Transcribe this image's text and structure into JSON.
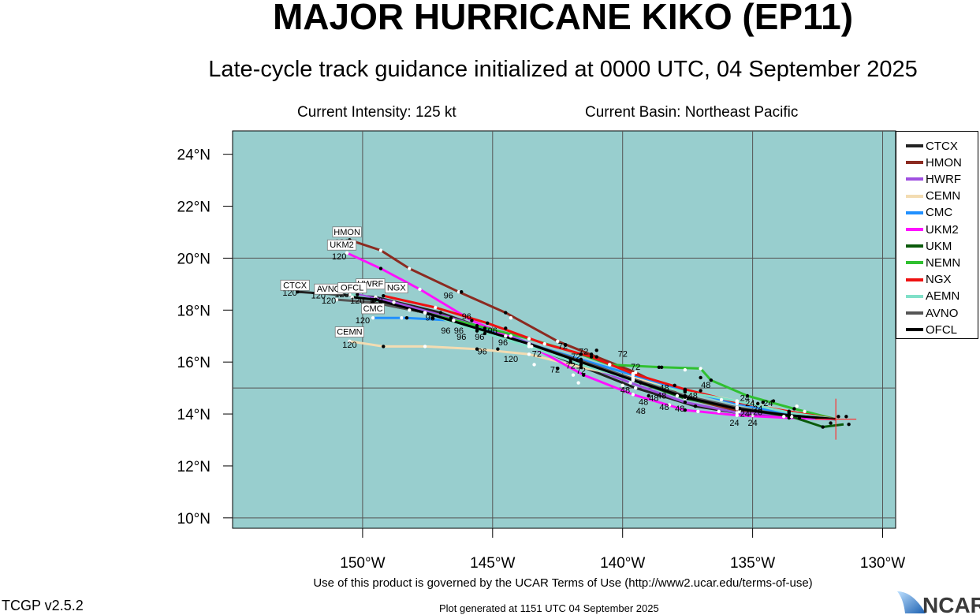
{
  "header": {
    "title": "MAJOR HURRICANE KIKO (EP11)",
    "subtitle": "Late-cycle track guidance initialized at 0000 UTC, 04 September 2025",
    "intensity": "Current Intensity: 125 kt",
    "basin": "Current Basin: Northeast Pacific"
  },
  "map": {
    "lon_range": [
      -155,
      -129.5
    ],
    "lat_range": [
      9.6,
      24.9
    ],
    "lat_ticks": [
      {
        "v": 10,
        "label": "10°N"
      },
      {
        "v": 12,
        "label": "12°N"
      },
      {
        "v": 14,
        "label": "14°N"
      },
      {
        "v": 16,
        "label": "16°N"
      },
      {
        "v": 18,
        "label": "18°N"
      },
      {
        "v": 20,
        "label": "20°N"
      },
      {
        "v": 22,
        "label": "22°N"
      },
      {
        "v": 24,
        "label": "24°N"
      }
    ],
    "lon_ticks": [
      {
        "v": -150,
        "label": "150°W"
      },
      {
        "v": -145,
        "label": "145°W"
      },
      {
        "v": -140,
        "label": "140°W"
      },
      {
        "v": -135,
        "label": "135°W"
      },
      {
        "v": -130,
        "label": "130°W"
      }
    ],
    "grid_lat": [
      10,
      15,
      20
    ],
    "grid_lon": [
      -150,
      -145,
      -140,
      -135,
      -130
    ],
    "ocean_color": "#98cece",
    "grid": true,
    "current_position": {
      "lon": -131.8,
      "lat": 13.8
    }
  },
  "legend": {
    "placement": "right",
    "entries": [
      {
        "name": "CTCX",
        "color": "#222222"
      },
      {
        "name": "HMON",
        "color": "#8b2a20"
      },
      {
        "name": "HWRF",
        "color": "#a050e0"
      },
      {
        "name": "CEMN",
        "color": "#f3dcb2"
      },
      {
        "name": "CMC",
        "color": "#2090ff"
      },
      {
        "name": "UKM2",
        "color": "#ff10ff"
      },
      {
        "name": "UKM",
        "color": "#0a5a0a"
      },
      {
        "name": "NEMN",
        "color": "#30c030"
      },
      {
        "name": "NGX",
        "color": "#ee1111"
      },
      {
        "name": "AEMN",
        "color": "#80e0c8"
      },
      {
        "name": "AVNO",
        "color": "#555555"
      },
      {
        "name": "OFCL",
        "color": "#000000"
      }
    ]
  },
  "tracks": [
    {
      "name": "CTCX",
      "color": "#222222",
      "points": [
        [
          -131.8,
          13.8
        ],
        [
          -133.2,
          13.85
        ],
        [
          -135.0,
          13.95
        ],
        [
          -137.2,
          14.3
        ],
        [
          -139.5,
          15.0
        ],
        [
          -142.0,
          16.0
        ],
        [
          -144.5,
          17.0
        ],
        [
          -147.0,
          17.9
        ],
        [
          -149.5,
          18.5
        ],
        [
          -152.5,
          18.7
        ]
      ],
      "label": {
        "lon": -152.6,
        "lat": 18.85,
        "text": "CTCX"
      },
      "end_hour": "120"
    },
    {
      "name": "HMON",
      "color": "#8b2a20",
      "points": [
        [
          -131.8,
          13.8
        ],
        [
          -133.5,
          13.9
        ],
        [
          -135.5,
          14.1
        ],
        [
          -137.5,
          14.6
        ],
        [
          -139.5,
          15.6
        ],
        [
          -141.0,
          16.2
        ],
        [
          -142.5,
          16.8
        ],
        [
          -144.5,
          17.9
        ],
        [
          -146.3,
          18.7
        ],
        [
          -148.2,
          19.6
        ],
        [
          -149.3,
          20.3
        ],
        [
          -150.5,
          20.7
        ]
      ],
      "label": {
        "lon": -150.6,
        "lat": 20.9,
        "text": "HMON"
      },
      "end_hour": "120"
    },
    {
      "name": "HWRF",
      "color": "#a050e0",
      "points": [
        [
          -131.8,
          13.8
        ],
        [
          -133.6,
          13.95
        ],
        [
          -135.6,
          14.05
        ],
        [
          -137.6,
          14.45
        ],
        [
          -139.7,
          15.2
        ],
        [
          -142.0,
          16.1
        ],
        [
          -144.3,
          17.0
        ],
        [
          -146.6,
          17.7
        ],
        [
          -148.8,
          18.3
        ],
        [
          -150.2,
          18.6
        ]
      ],
      "label": {
        "lon": -149.7,
        "lat": 18.9,
        "text": "HWRF"
      },
      "end_hour": "120"
    },
    {
      "name": "CEMN",
      "color": "#f3dcb2",
      "points": [
        [
          -131.8,
          13.8
        ],
        [
          -133.6,
          14.1
        ],
        [
          -135.6,
          14.5
        ],
        [
          -137.6,
          14.9
        ],
        [
          -139.6,
          15.4
        ],
        [
          -141.6,
          15.8
        ],
        [
          -143.6,
          16.3
        ],
        [
          -145.6,
          16.5
        ],
        [
          -147.6,
          16.6
        ],
        [
          -149.2,
          16.6
        ],
        [
          -150.5,
          16.8
        ]
      ],
      "label": {
        "lon": -150.5,
        "lat": 17.05,
        "text": "CEMN"
      },
      "end_hour": "120"
    },
    {
      "name": "CMC",
      "color": "#2090ff",
      "points": [
        [
          -131.8,
          13.8
        ],
        [
          -133.6,
          14.0
        ],
        [
          -135.6,
          14.4
        ],
        [
          -137.6,
          14.9
        ],
        [
          -139.6,
          15.5
        ],
        [
          -141.6,
          16.1
        ],
        [
          -143.6,
          16.7
        ],
        [
          -145.3,
          17.3
        ],
        [
          -146.5,
          17.6
        ],
        [
          -148.3,
          17.7
        ],
        [
          -149.6,
          17.7
        ]
      ],
      "label": {
        "lon": -149.6,
        "lat": 17.95,
        "text": "CMC"
      },
      "end_hour": "120"
    },
    {
      "name": "UKM2",
      "color": "#ff10ff",
      "points": [
        [
          -131.8,
          13.8
        ],
        [
          -133.6,
          13.85
        ],
        [
          -135.6,
          13.95
        ],
        [
          -137.6,
          14.15
        ],
        [
          -139.6,
          14.75
        ],
        [
          -141.5,
          15.5
        ],
        [
          -143.5,
          16.6
        ],
        [
          -145.8,
          17.6
        ],
        [
          -147.8,
          18.8
        ],
        [
          -149.3,
          19.6
        ],
        [
          -150.6,
          20.2
        ]
      ],
      "label": {
        "lon": -150.8,
        "lat": 20.4,
        "text": "UKM2"
      },
      "end_hour": "120"
    },
    {
      "name": "UKM",
      "color": "#0a5a0a",
      "points": [
        [
          -131.5,
          13.6
        ],
        [
          -132.3,
          13.5
        ],
        [
          -133.5,
          13.9
        ],
        [
          -135.5,
          14.2
        ],
        [
          -137.6,
          14.6
        ],
        [
          -139.6,
          15.3
        ],
        [
          -141.6,
          16.0
        ],
        [
          -143.6,
          16.7
        ],
        [
          -145.6,
          17.3
        ],
        [
          -147.6,
          17.9
        ],
        [
          -149.6,
          18.3
        ]
      ],
      "label": null,
      "end_hour": "120"
    },
    {
      "name": "NEMN",
      "color": "#30c030",
      "points": [
        [
          -131.8,
          13.8
        ],
        [
          -133.4,
          14.2
        ],
        [
          -135.2,
          14.7
        ],
        [
          -136.6,
          15.3
        ],
        [
          -137.0,
          15.75
        ],
        [
          -138.5,
          15.8
        ],
        [
          -140.5,
          15.9
        ],
        [
          -141.6,
          16.3
        ],
        [
          -143.6,
          16.9
        ],
        [
          -145.6,
          17.4
        ],
        [
          -147.6,
          17.9
        ],
        [
          -149.3,
          18.3
        ]
      ],
      "label": null,
      "end_hour": "120"
    },
    {
      "name": "NGX",
      "color": "#ee1111",
      "points": [
        [
          -131.8,
          13.8
        ],
        [
          -133.6,
          14.1
        ],
        [
          -135.6,
          14.45
        ],
        [
          -137.6,
          14.95
        ],
        [
          -139.6,
          15.55
        ],
        [
          -141.2,
          16.2
        ],
        [
          -143.0,
          16.7
        ],
        [
          -145.2,
          17.5
        ],
        [
          -147.2,
          18.1
        ],
        [
          -149.2,
          18.55
        ]
      ],
      "label": {
        "lon": -148.7,
        "lat": 18.75,
        "text": "NGX"
      },
      "end_hour": "120"
    },
    {
      "name": "AEMN",
      "color": "#80e0c8",
      "points": [
        [
          -131.8,
          13.8
        ],
        [
          -133.6,
          14.05
        ],
        [
          -135.6,
          14.5
        ],
        [
          -137.6,
          14.85
        ],
        [
          -139.6,
          15.3
        ],
        [
          -141.6,
          15.9
        ],
        [
          -143.6,
          16.6
        ],
        [
          -145.6,
          17.2
        ],
        [
          -147.6,
          17.9
        ],
        [
          -149.6,
          18.4
        ],
        [
          -150.5,
          18.6
        ]
      ],
      "label": null,
      "end_hour": "120"
    },
    {
      "name": "AVNO",
      "color": "#555555",
      "points": [
        [
          -131.8,
          13.8
        ],
        [
          -133.6,
          13.95
        ],
        [
          -135.6,
          14.25
        ],
        [
          -137.6,
          14.7
        ],
        [
          -139.6,
          15.35
        ],
        [
          -141.6,
          16.05
        ],
        [
          -143.6,
          16.7
        ],
        [
          -145.6,
          17.3
        ],
        [
          -147.6,
          17.9
        ],
        [
          -149.6,
          18.3
        ],
        [
          -151.0,
          18.4
        ]
      ],
      "label": {
        "lon": -151.3,
        "lat": 18.7,
        "text": "AVNO"
      },
      "end_hour": "120"
    },
    {
      "name": "OFCL",
      "color": "#000000",
      "points": [
        [
          -131.8,
          13.8
        ],
        [
          -133.6,
          13.95
        ],
        [
          -135.6,
          14.2
        ],
        [
          -137.6,
          14.65
        ],
        [
          -139.6,
          15.3
        ],
        [
          -141.6,
          16.0
        ],
        [
          -143.6,
          16.7
        ],
        [
          -145.6,
          17.3
        ],
        [
          -147.6,
          17.9
        ],
        [
          -149.5,
          18.4
        ],
        [
          -150.4,
          18.5
        ]
      ],
      "label": {
        "lon": -150.4,
        "lat": 18.75,
        "text": "OFCL"
      },
      "end_hour": "120"
    }
  ],
  "hour_labels": [
    {
      "lon": -152.8,
      "lat": 18.55,
      "text": "120"
    },
    {
      "lon": -151.7,
      "lat": 18.45,
      "text": "120"
    },
    {
      "lon": -151.3,
      "lat": 18.25,
      "text": "120"
    },
    {
      "lon": -150.8,
      "lat": 18.5,
      "text": "120"
    },
    {
      "lon": -150.2,
      "lat": 18.25,
      "text": "120"
    },
    {
      "lon": -149.5,
      "lat": 18.25,
      "text": "120"
    },
    {
      "lon": -150.9,
      "lat": 19.95,
      "text": "120"
    },
    {
      "lon": -150.8,
      "lat": 20.5,
      "text": "120"
    },
    {
      "lon": -150.0,
      "lat": 17.5,
      "text": "120"
    },
    {
      "lon": -150.5,
      "lat": 16.55,
      "text": "120"
    },
    {
      "lon": -144.3,
      "lat": 16.0,
      "text": "120"
    },
    {
      "lon": -146.7,
      "lat": 18.45,
      "text": "96"
    },
    {
      "lon": -147.4,
      "lat": 17.6,
      "text": "96"
    },
    {
      "lon": -146.0,
      "lat": 17.65,
      "text": "96"
    },
    {
      "lon": -146.8,
      "lat": 17.1,
      "text": "96"
    },
    {
      "lon": -146.3,
      "lat": 17.1,
      "text": "96"
    },
    {
      "lon": -146.2,
      "lat": 16.85,
      "text": "96"
    },
    {
      "lon": -145.5,
      "lat": 16.85,
      "text": "96"
    },
    {
      "lon": -145.0,
      "lat": 17.1,
      "text": "96"
    },
    {
      "lon": -144.6,
      "lat": 16.65,
      "text": "96"
    },
    {
      "lon": -145.4,
      "lat": 16.3,
      "text": "96"
    },
    {
      "lon": -142.3,
      "lat": 16.5,
      "text": "72"
    },
    {
      "lon": -143.3,
      "lat": 16.2,
      "text": "72"
    },
    {
      "lon": -141.8,
      "lat": 16.1,
      "text": "72"
    },
    {
      "lon": -142.6,
      "lat": 15.6,
      "text": "72"
    },
    {
      "lon": -141.6,
      "lat": 15.55,
      "text": "72"
    },
    {
      "lon": -141.5,
      "lat": 16.3,
      "text": "72"
    },
    {
      "lon": -140.0,
      "lat": 16.2,
      "text": "72"
    },
    {
      "lon": -139.5,
      "lat": 15.7,
      "text": "72"
    },
    {
      "lon": -142.0,
      "lat": 15.75,
      "text": "72"
    },
    {
      "lon": -139.9,
      "lat": 14.8,
      "text": "48"
    },
    {
      "lon": -139.2,
      "lat": 14.35,
      "text": "48"
    },
    {
      "lon": -139.3,
      "lat": 14.0,
      "text": "48"
    },
    {
      "lon": -138.5,
      "lat": 14.6,
      "text": "48"
    },
    {
      "lon": -138.4,
      "lat": 14.15,
      "text": "48"
    },
    {
      "lon": -137.8,
      "lat": 14.1,
      "text": "48"
    },
    {
      "lon": -137.3,
      "lat": 14.6,
      "text": "48"
    },
    {
      "lon": -138.4,
      "lat": 14.9,
      "text": "48"
    },
    {
      "lon": -136.8,
      "lat": 15.0,
      "text": "48"
    },
    {
      "lon": -138.8,
      "lat": 14.5,
      "text": "48"
    },
    {
      "lon": -135.3,
      "lat": 14.5,
      "text": "24"
    },
    {
      "lon": -135.1,
      "lat": 14.3,
      "text": "24"
    },
    {
      "lon": -135.3,
      "lat": 13.9,
      "text": "24"
    },
    {
      "lon": -135.7,
      "lat": 13.55,
      "text": "24"
    },
    {
      "lon": -135.0,
      "lat": 13.55,
      "text": "24"
    },
    {
      "lon": -134.8,
      "lat": 14.1,
      "text": "24"
    },
    {
      "lon": -134.9,
      "lat": 13.95,
      "text": "120"
    },
    {
      "lon": -134.4,
      "lat": 14.3,
      "text": "24"
    }
  ],
  "extra_dots": [
    {
      "lon": -148.2,
      "lat": 19.6,
      "fill": "#ffffff"
    },
    {
      "lon": -144.3,
      "lat": 17.7,
      "fill": "#ffffff"
    },
    {
      "lon": -140.5,
      "lat": 15.9,
      "fill": "#ffffff"
    },
    {
      "lon": -138.6,
      "lat": 15.8,
      "fill": "#000000"
    },
    {
      "lon": -137.6,
      "lat": 15.7,
      "fill": "#ffffff"
    },
    {
      "lon": -137.0,
      "lat": 15.4,
      "fill": "#000000"
    },
    {
      "lon": -141.0,
      "lat": 16.45,
      "fill": "#000000"
    },
    {
      "lon": -146.2,
      "lat": 18.7,
      "fill": "#000000"
    },
    {
      "lon": -144.5,
      "lat": 17.3,
      "fill": "#000000"
    },
    {
      "lon": -144.8,
      "lat": 16.5,
      "fill": "#000000"
    },
    {
      "lon": -142.2,
      "lat": 16.65,
      "fill": "#000000"
    },
    {
      "lon": -141.2,
      "lat": 16.3,
      "fill": "#000000"
    },
    {
      "lon": -138.0,
      "lat": 15.1,
      "fill": "#000000"
    },
    {
      "lon": -137.0,
      "lat": 14.9,
      "fill": "#000000"
    },
    {
      "lon": -139.3,
      "lat": 15.2,
      "fill": "#000000"
    },
    {
      "lon": -136.2,
      "lat": 14.55,
      "fill": "#ffffff"
    },
    {
      "lon": -135.2,
      "lat": 14.7,
      "fill": "#000000"
    },
    {
      "lon": -134.6,
      "lat": 14.45,
      "fill": "#000000"
    },
    {
      "lon": -134.2,
      "lat": 14.5,
      "fill": "#000000"
    },
    {
      "lon": -134.8,
      "lat": 14.4,
      "fill": "#000000"
    },
    {
      "lon": -133.3,
      "lat": 14.3,
      "fill": "#ffffff"
    },
    {
      "lon": -133.0,
      "lat": 14.1,
      "fill": "#ffffff"
    },
    {
      "lon": -133.8,
      "lat": 13.9,
      "fill": "#ffffff"
    },
    {
      "lon": -131.7,
      "lat": 13.9,
      "fill": "#000000"
    },
    {
      "lon": -131.4,
      "lat": 13.9,
      "fill": "#000000"
    },
    {
      "lon": -131.3,
      "lat": 13.6,
      "fill": "#000000"
    },
    {
      "lon": -132.0,
      "lat": 13.65,
      "fill": "#000000"
    },
    {
      "lon": -141.9,
      "lat": 15.5,
      "fill": "#ffffff"
    },
    {
      "lon": -142.5,
      "lat": 15.75,
      "fill": "#000000"
    },
    {
      "lon": -143.4,
      "lat": 15.9,
      "fill": "#ffffff"
    },
    {
      "lon": -141.7,
      "lat": 15.2,
      "fill": "#ffffff"
    },
    {
      "lon": -140.0,
      "lat": 15.1,
      "fill": "#ffffff"
    },
    {
      "lon": -138.2,
      "lat": 14.35,
      "fill": "#ffffff"
    },
    {
      "lon": -137.1,
      "lat": 14.1,
      "fill": "#ffffff"
    },
    {
      "lon": -136.3,
      "lat": 14.1,
      "fill": "#ffffff"
    },
    {
      "lon": -137.9,
      "lat": 14.7,
      "fill": "#ffffff"
    },
    {
      "lon": -139.0,
      "lat": 14.7,
      "fill": "#000000"
    },
    {
      "lon": -145.3,
      "lat": 17.1,
      "fill": "#000000"
    },
    {
      "lon": -146.5,
      "lat": 17.6,
      "fill": "#ffffff"
    },
    {
      "lon": -147.3,
      "lat": 17.7,
      "fill": "#000000"
    },
    {
      "lon": -148.2,
      "lat": 18.0,
      "fill": "#ffffff"
    },
    {
      "lon": -148.5,
      "lat": 17.7,
      "fill": "#ffffff"
    }
  ],
  "footer": {
    "terms": "Use of this product is governed by the UCAR Terms of Use (http://www2.ucar.edu/terms-of-use)",
    "version": "TCGP v2.5.2",
    "generated": "Plot generated at 1151 UTC   04 September 2025",
    "logo_text": "NCAR"
  }
}
